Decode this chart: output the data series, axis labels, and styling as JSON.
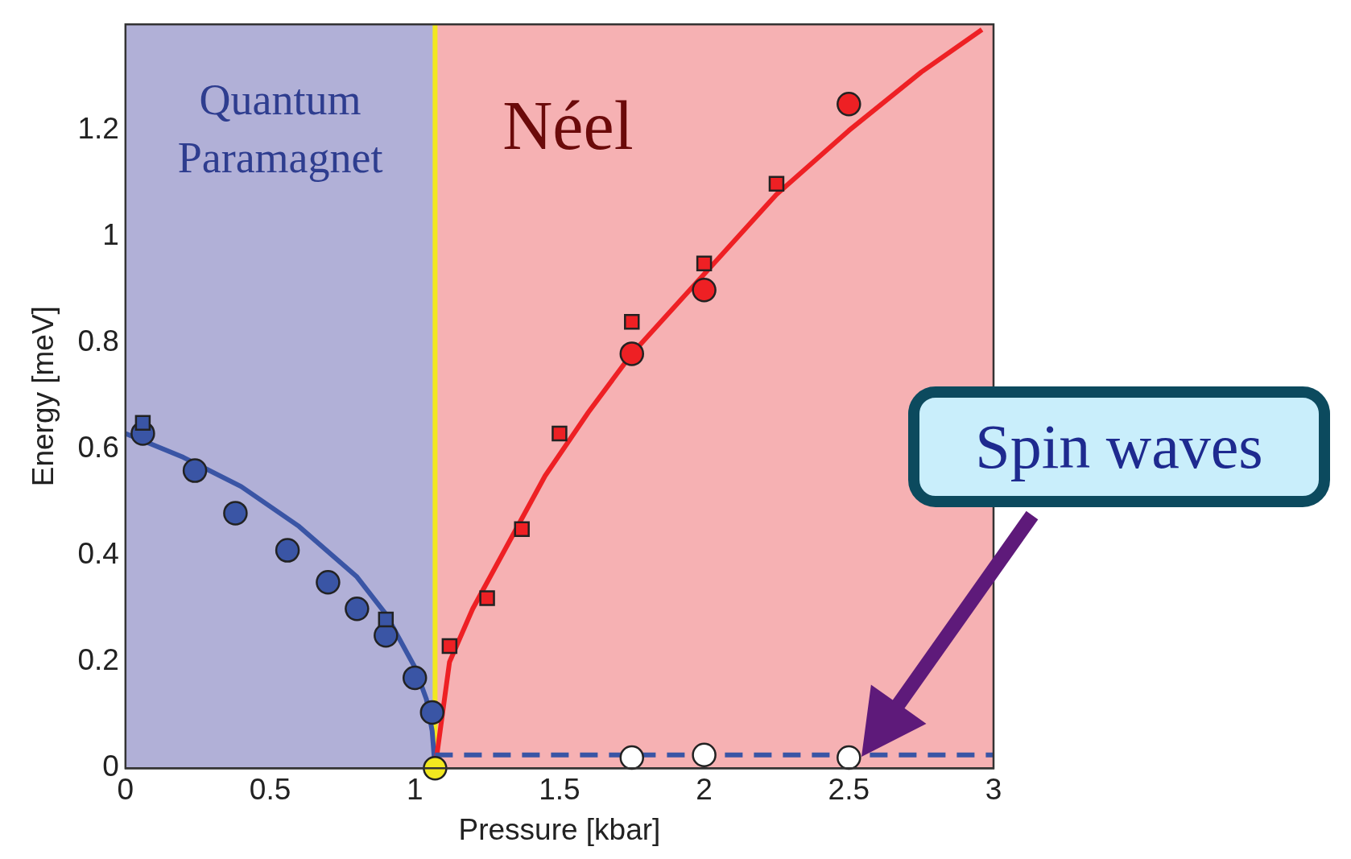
{
  "chart_data": {
    "type": "scatter",
    "xlabel": "Pressure [kbar]",
    "ylabel": "Energy [meV]",
    "xlim": [
      0,
      3
    ],
    "xticks": [
      0,
      0.5,
      1,
      1.5,
      2,
      2.5,
      3
    ],
    "ylim": [
      0,
      1.4
    ],
    "yticks": [
      0,
      0.2,
      0.4,
      0.6,
      0.8,
      1,
      1.2
    ],
    "legend": false,
    "bands": [
      {
        "axis": "x",
        "from": 0,
        "to": 1.07,
        "label": "Quantum Paramagnet",
        "color": "#b1b0d7"
      },
      {
        "axis": "x",
        "from": 1.07,
        "to": 3,
        "label": "Néel",
        "color": "#f6b1b3"
      }
    ],
    "ref_lines": [
      {
        "axis": "x",
        "value": 1.07,
        "color": "#f2e81f"
      }
    ],
    "annotations": [
      "Spin waves"
    ],
    "series": [
      {
        "type": "line",
        "color": "#3a55a5",
        "marker": "none",
        "line_style": "solid",
        "x": [
          0,
          0.2,
          0.4,
          0.6,
          0.8,
          0.9,
          1.0,
          1.04,
          1.06,
          1.07
        ],
        "values": [
          0.63,
          0.585,
          0.53,
          0.455,
          0.36,
          0.29,
          0.19,
          0.13,
          0.07,
          0
        ]
      },
      {
        "type": "line",
        "color": "#ee2024",
        "marker": "none",
        "line_style": "solid",
        "x": [
          1.07,
          1.12,
          1.2,
          1.3,
          1.45,
          1.6,
          1.75,
          2.0,
          2.25,
          2.5,
          2.75,
          2.96
        ],
        "values": [
          0,
          0.2,
          0.3,
          0.4,
          0.55,
          0.67,
          0.78,
          0.93,
          1.08,
          1.2,
          1.31,
          1.39
        ]
      },
      {
        "type": "line",
        "color": "#3a55a5",
        "marker": "none",
        "line_style": "dashed",
        "x": [
          1.07,
          3
        ],
        "values": [
          0.025,
          0.025
        ]
      },
      {
        "color": "#3a55a5",
        "marker": "circle",
        "x": [
          0.06,
          0.24,
          0.38,
          0.56,
          0.7,
          0.8,
          0.9,
          1.0,
          1.06
        ],
        "values": [
          0.63,
          0.56,
          0.48,
          0.41,
          0.35,
          0.3,
          0.25,
          0.17,
          0.105
        ]
      },
      {
        "color": "#3a55a5",
        "marker": "square",
        "x": [
          0.06,
          0.9
        ],
        "values": [
          0.65,
          0.28
        ]
      },
      {
        "color": "#ee2024",
        "marker": "square",
        "x": [
          1.12,
          1.25,
          1.37,
          1.5,
          1.75,
          2.0,
          2.25
        ],
        "values": [
          0.23,
          0.32,
          0.45,
          0.63,
          0.84,
          0.95,
          1.1
        ]
      },
      {
        "color": "#ee2024",
        "marker": "circle",
        "x": [
          1.75,
          2.0,
          2.5
        ],
        "values": [
          0.78,
          0.9,
          1.25
        ]
      },
      {
        "color": "#ffffff",
        "marker": "circle",
        "x": [
          1.75,
          2.0,
          2.5
        ],
        "values": [
          0.02,
          0.025,
          0.02
        ]
      },
      {
        "color": "#f2e81f",
        "marker": "circle",
        "x": [
          1.07
        ],
        "values": [
          0
        ]
      }
    ]
  }
}
